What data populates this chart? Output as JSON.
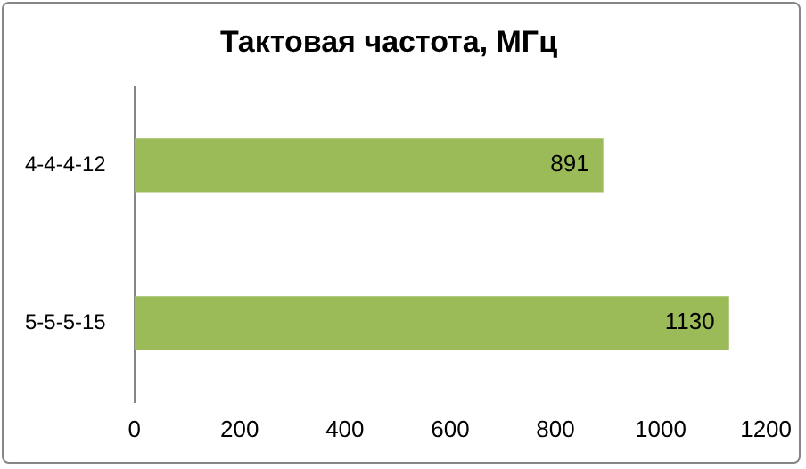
{
  "chart_data": {
    "type": "bar",
    "orientation": "horizontal",
    "title": "Тактовая частота, МГц",
    "categories": [
      "4-4-4-12",
      "5-5-5-15"
    ],
    "values": [
      891,
      1130
    ],
    "color": "#9bbb59",
    "xlim": [
      0,
      1200
    ],
    "xticks": [
      0,
      200,
      400,
      600,
      800,
      1000,
      1200
    ],
    "data_labels": true,
    "grid": false,
    "legend": false
  }
}
